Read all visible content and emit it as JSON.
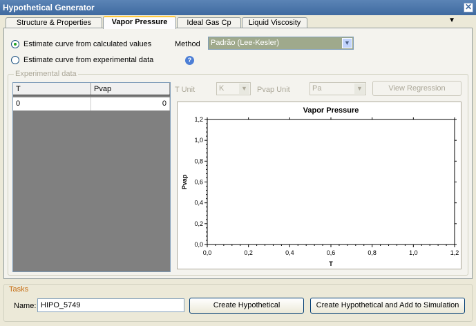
{
  "window": {
    "title": "Hypothetical Generator",
    "close_glyph": "✕"
  },
  "tabs": [
    {
      "label": "Structure & Properties",
      "active": false
    },
    {
      "label": "Vapor Pressure",
      "active": true
    },
    {
      "label": "Ideal Gas Cp",
      "active": false
    },
    {
      "label": "Liquid Viscosity",
      "active": false
    }
  ],
  "tab_menu_glyph": "▼",
  "estimate": {
    "option_calculated": "Estimate curve from calculated values",
    "option_experimental": "Estimate curve from experimental data",
    "selected": "calculated"
  },
  "method": {
    "label": "Method",
    "value": "Padrão (Lee-Kesler)"
  },
  "experimental": {
    "legend": "Experimental data",
    "columns": [
      "T",
      "Pvap"
    ],
    "rows": [
      [
        "0",
        "0"
      ]
    ],
    "t_unit_label": "T Unit",
    "t_unit_value": "K",
    "pvap_unit_label": "Pvap Unit",
    "pvap_unit_value": "Pa",
    "view_regression": "View Regression"
  },
  "chart_data": {
    "type": "line",
    "title": "Vapor Pressure",
    "xlabel": "T",
    "ylabel": "Pvap",
    "xlim": [
      0,
      1.2
    ],
    "ylim": [
      0,
      1.2
    ],
    "x_ticks": [
      "0,0",
      "0,2",
      "0,4",
      "0,6",
      "0,8",
      "1,0",
      "1,2"
    ],
    "y_ticks": [
      "0,0",
      "0,2",
      "0,4",
      "0,6",
      "0,8",
      "1,0",
      "1,2"
    ],
    "series": [],
    "grid": false
  },
  "tasks": {
    "legend": "Tasks",
    "name_label": "Name:",
    "name_value": "HIPO_5749",
    "create_button": "Create Hypothetical",
    "create_add_button": "Create Hypothetical and Add to Simulation"
  }
}
